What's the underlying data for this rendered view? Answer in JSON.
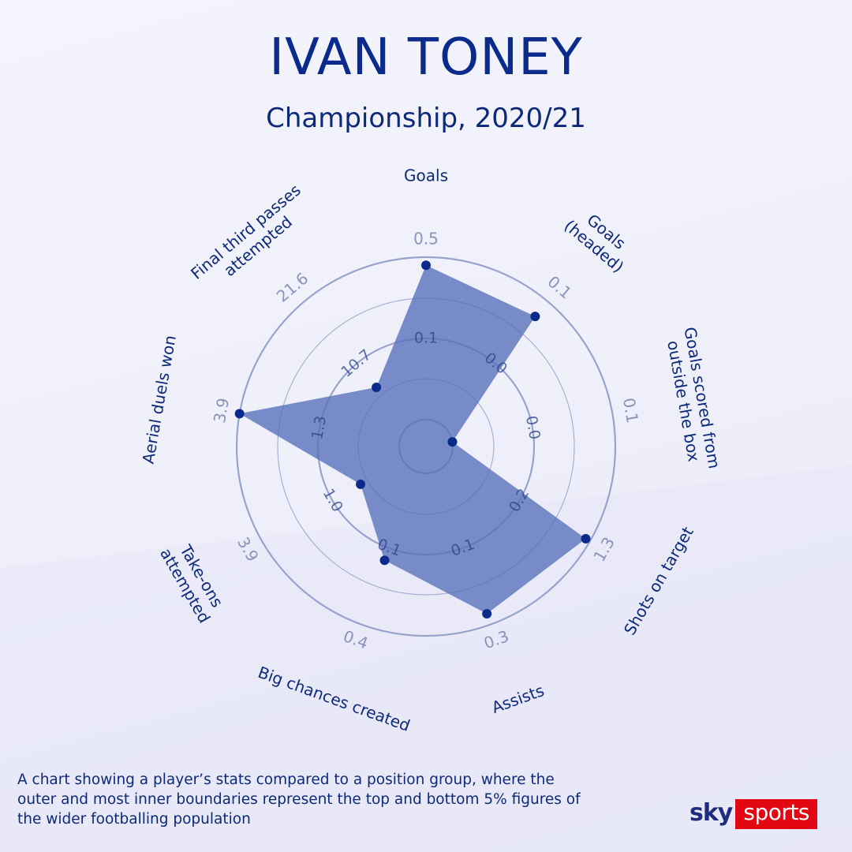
{
  "header": {
    "title": "IVAN TONEY",
    "subtitle": "Championship, 2020/21"
  },
  "footnote": "A chart showing a player’s stats compared to a position group,  where the outer and most inner boundaries represent the top  and bottom 5% figures of the wider footballing population",
  "logo": {
    "sky": "sky",
    "sports": "sports"
  },
  "colors": {
    "fill": "#6b82c2",
    "point": "#0a2a8c",
    "ring": "#b8c0dc",
    "text": "#0d2a7a",
    "tick": "#8b94b8",
    "logo_red": "#e30613"
  },
  "chart_data": {
    "type": "radar",
    "title": "IVAN TONEY",
    "subtitle": "Championship, 2020/21",
    "axes": [
      {
        "label": "Goals",
        "value": 0.5,
        "percentile": 0.95,
        "inner_tick": "0.1",
        "outer_tick": "0.5"
      },
      {
        "label": "Goals (headed)",
        "value": 0.1,
        "percentile": 0.88,
        "inner_tick": "0.0",
        "outer_tick": "0.1"
      },
      {
        "label": "Goals scored from outside the box",
        "value": 0.0,
        "percentile": 0.0,
        "inner_tick": "0.0",
        "outer_tick": "0.1"
      },
      {
        "label": "Shots on target",
        "value": 1.3,
        "percentile": 0.97,
        "inner_tick": "0.2",
        "outer_tick": "1.3"
      },
      {
        "label": "Assists",
        "value": 0.3,
        "percentile": 0.93,
        "inner_tick": "0.1",
        "outer_tick": "0.3"
      },
      {
        "label": "Big chances created",
        "value": 0.4,
        "percentile": 0.58,
        "inner_tick": "0.1",
        "outer_tick": "0.4"
      },
      {
        "label": "Take-ons attempted",
        "value": 1.0,
        "percentile": 0.3,
        "inner_tick": "1.0",
        "outer_tick": "3.9"
      },
      {
        "label": "Aerial duels won",
        "value": 3.9,
        "percentile": 1.0,
        "inner_tick": "1.3",
        "outer_tick": "3.9"
      },
      {
        "label": "Final third passes attempted",
        "value": 10.7,
        "percentile": 0.31,
        "inner_tick": "10.7",
        "outer_tick": "21.6"
      }
    ],
    "label_lines": [
      [
        "Goals"
      ],
      [
        "Goals",
        "(headed)"
      ],
      [
        "Goals scored from",
        "outside the box"
      ],
      [
        "Shots on target"
      ],
      [
        "Assists"
      ],
      [
        "Big chances created"
      ],
      [
        "Take-ons",
        "attempted"
      ],
      [
        "Aerial duels won"
      ],
      [
        "Final third passes",
        "attempted"
      ]
    ]
  }
}
